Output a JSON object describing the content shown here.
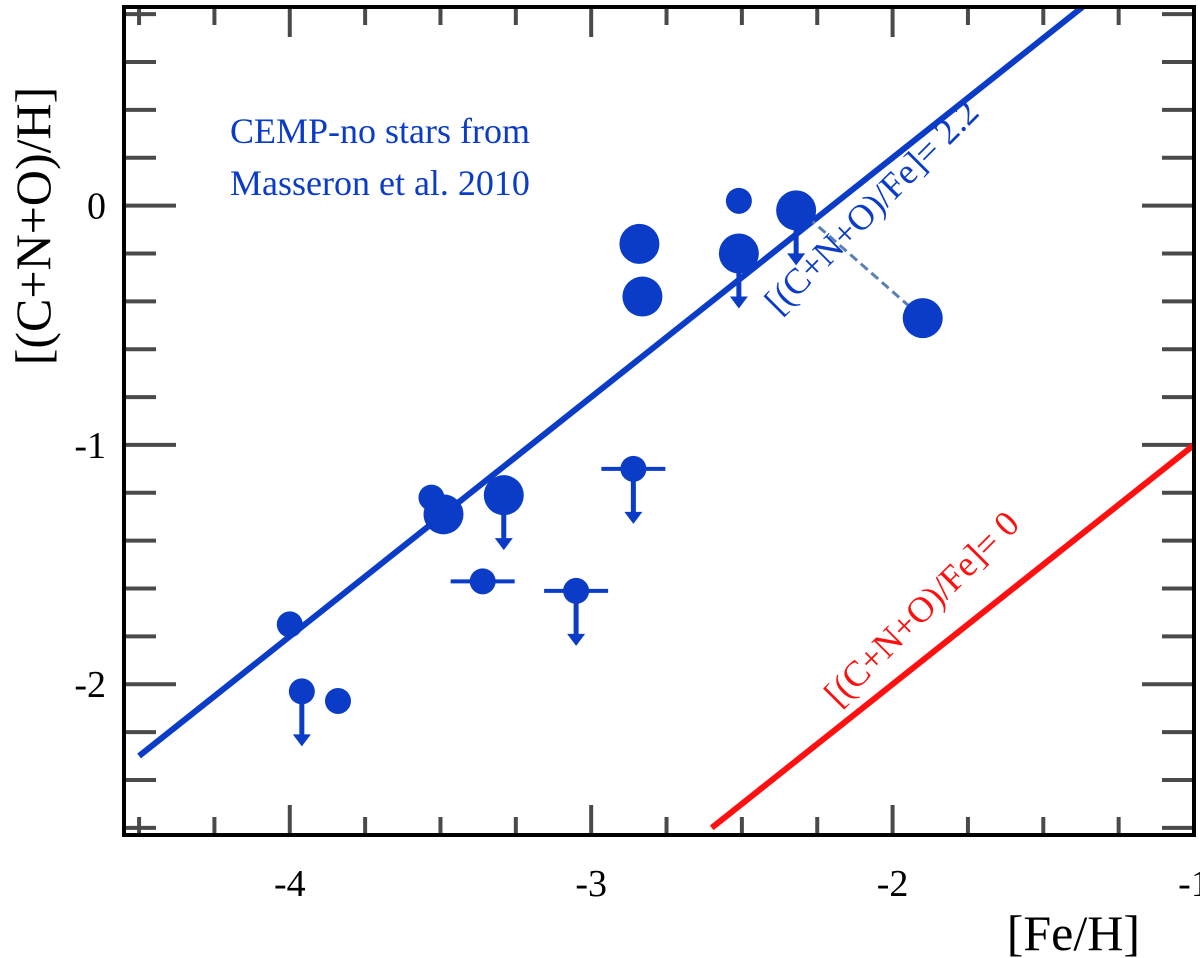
{
  "chart_data": {
    "type": "scatter",
    "title": "",
    "xlabel": "[Fe/H]",
    "ylabel": "[(C+N+O)/H]",
    "xlim": [
      -4.55,
      -1.0
    ],
    "ylim": [
      -2.63,
      0.83
    ],
    "x_ticks": [
      "-4",
      "-3",
      "-2",
      "-1"
    ],
    "x_tick_values": [
      -4,
      -3,
      -2,
      -1
    ],
    "y_ticks": [
      "0",
      "-1",
      "-2"
    ],
    "y_tick_values": [
      0,
      -1,
      -2
    ],
    "grid": false,
    "annotation": [
      "CEMP-no stars from",
      "Masseron et al. 2010"
    ],
    "colors": {
      "points": "#0a3cc8",
      "fit_line": "#0a3cc8",
      "solar_line": "#ff1010",
      "connector": "#5a7fb5"
    },
    "lines": [
      {
        "label": "[(C+N+O)/Fe]= 2.2",
        "offset": 2.2,
        "x": [
          -4.5,
          -1.3
        ],
        "color": "#0a3cc8"
      },
      {
        "label": "[(C+N+O)/Fe]= 0",
        "offset": 0,
        "x": [
          -2.6,
          -1.0
        ],
        "color": "#ff1010"
      }
    ],
    "points": [
      {
        "x": -4.0,
        "y": -1.75,
        "size": "small"
      },
      {
        "x": -3.96,
        "y": -2.03,
        "size": "small",
        "upper_limit": true
      },
      {
        "x": -3.84,
        "y": -2.07,
        "size": "small"
      },
      {
        "x": -3.53,
        "y": -1.22,
        "size": "small"
      },
      {
        "x": -3.49,
        "y": -1.29,
        "size": "large"
      },
      {
        "x": -3.36,
        "y": -1.57,
        "size": "small",
        "x_range": true
      },
      {
        "x": -3.29,
        "y": -1.21,
        "size": "large",
        "upper_limit": true
      },
      {
        "x": -3.05,
        "y": -1.61,
        "size": "small",
        "upper_limit": true,
        "x_range": true
      },
      {
        "x": -2.86,
        "y": -1.1,
        "size": "small",
        "upper_limit": true,
        "x_range": true
      },
      {
        "x": -2.84,
        "y": -0.16,
        "size": "large"
      },
      {
        "x": -2.83,
        "y": -0.38,
        "size": "large"
      },
      {
        "x": -2.51,
        "y": 0.02,
        "size": "small"
      },
      {
        "x": -2.51,
        "y": -0.2,
        "size": "large",
        "upper_limit": true
      },
      {
        "x": -2.32,
        "y": -0.02,
        "size": "large",
        "upper_limit": true
      },
      {
        "x": -1.9,
        "y": -0.47,
        "size": "large"
      }
    ],
    "connector": {
      "from": [
        -2.28,
        -0.05
      ],
      "to": [
        -1.9,
        -0.47
      ]
    }
  }
}
